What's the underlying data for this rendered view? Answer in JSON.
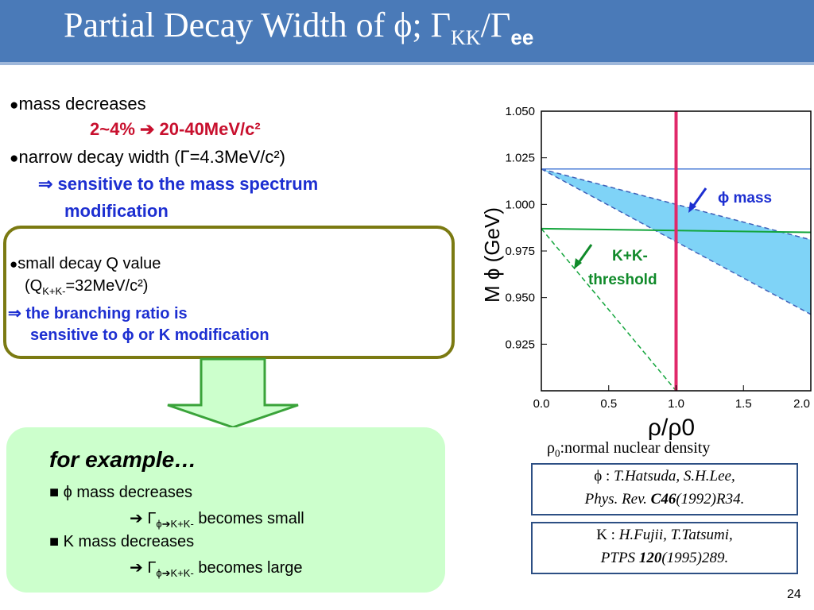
{
  "slide": {
    "title": "Partial Decay Width of ϕ; Γ",
    "title_sub1": "KK",
    "title_slash": "/Γ",
    "title_sub2": "ee",
    "page_number": "24"
  },
  "bullets": {
    "b1_text": "mass decreases",
    "b1_sub": "2~4% ➔ 20-40MeV/c²",
    "b2_text": "narrow decay width (Γ=4.3MeV/c²)",
    "b2_sub1": "⇒ sensitive to the mass spectrum",
    "b2_sub2": "modification"
  },
  "q_box": {
    "line1": "small decay Q value",
    "line2_pre": "(Q",
    "line2_sub": "K+K-",
    "line2_post": "=32MeV/c²)",
    "line3": "⇒ the branching ratio is",
    "line4": "sensitive to ϕ or K modification"
  },
  "example_box": {
    "heading": "for example…",
    "item1": "■ ϕ mass decreases",
    "item1_sub_pre": "➔ Γ",
    "item1_sub_sub": "ϕ➔K+K-",
    "item1_sub_post": " becomes small",
    "item2": "■ K mass decreases",
    "item2_sub_pre": "➔ Γ",
    "item2_sub_sub": "ϕ➔K+K-",
    "item2_sub_post": " becomes large"
  },
  "chart_data": {
    "type": "line",
    "xlabel": "ρ/ρ0",
    "ylabel": "M ϕ (GeV)",
    "xlim": [
      0.0,
      2.0
    ],
    "ylim": [
      0.9,
      1.05
    ],
    "x_ticks": [
      "0.0",
      "0.5",
      "1.0",
      "1.5",
      "2.0"
    ],
    "y_ticks": [
      "1.050",
      "1.025",
      "1.000",
      "0.975",
      "0.950",
      "0.925"
    ],
    "series": [
      {
        "name": "ϕ mass",
        "x": [
          0.0,
          2.0
        ],
        "y_low": [
          1.019,
          0.941
        ],
        "y_high": [
          1.019,
          0.981
        ]
      },
      {
        "name": "K+K- threshold",
        "x": [
          0.0,
          2.0
        ],
        "y": [
          0.987,
          0.985
        ]
      },
      {
        "x": [
          0.0,
          1.0
        ],
        "y": [
          0.987,
          0.9
        ]
      }
    ],
    "hlines": [
      1.019
    ],
    "vlines": [
      1.0
    ],
    "annotations": {
      "phi_mass": "ϕ mass",
      "kk_line1": "K+K-",
      "kk_line2": "threshold"
    },
    "colors": {
      "band": "#7fd3f7",
      "band_edge": "#3e5fb8",
      "threshold": "#13a53c",
      "vline": "#e0286a",
      "hline": "#4a7bd6",
      "arrow_blue": "#1d2fd1",
      "arrow_green": "#108a2a"
    }
  },
  "density_note": {
    "pre": "ρ",
    "sub": "0",
    "post": ":normal nuclear density"
  },
  "references": {
    "ref1_label": "ϕ : ",
    "ref1_auth": "T.Hatsuda, S.H.Lee,",
    "ref1_jour": "Phys. Rev. ",
    "ref1_vol": "C46",
    "ref1_rest": "(1992)R34.",
    "ref2_label": "K : ",
    "ref2_auth": "H.Fujii, T.Tatsumi,",
    "ref2_jour": "PTPS ",
    "ref2_vol": "120",
    "ref2_rest": "(1995)289."
  }
}
